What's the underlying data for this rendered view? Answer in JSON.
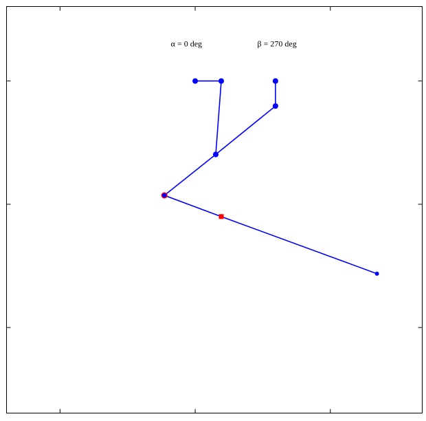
{
  "chart_data": {
    "type": "line",
    "title": "",
    "xlabel": "",
    "ylabel": "",
    "xlim": [
      -1.396,
      1.68
    ],
    "ylim": [
      -1.694,
      1.604
    ],
    "xticks": [
      -1,
      0,
      1
    ],
    "yticks": [
      -1,
      0,
      1
    ],
    "tick_labels_shown": false,
    "grid": false,
    "annotations": [
      {
        "text": "α = 0 deg",
        "x": -0.18,
        "y": 1.28
      },
      {
        "text": "β = 270 deg",
        "x": 0.46,
        "y": 1.28
      }
    ],
    "series": [
      {
        "color": "#0000ff",
        "marker": "circle",
        "points": [
          [
            0,
            1
          ],
          [
            0.193,
            1
          ],
          [
            0.152,
            0.404
          ]
        ]
      },
      {
        "color": "#0000ff",
        "marker": "circle",
        "points": [
          [
            -0.228,
            0.072
          ],
          [
            0.152,
            0.404
          ],
          [
            0.594,
            0.797
          ],
          [
            0.594,
            1
          ]
        ]
      },
      {
        "color": "#0000ff",
        "marker": "none",
        "points": [
          [
            -0.228,
            0.072
          ],
          [
            0.193,
            -0.1
          ],
          [
            1.345,
            -0.563
          ]
        ]
      }
    ],
    "highlight_points": [
      {
        "color": "#ff0000",
        "marker": "circle",
        "x": -0.228,
        "y": 0.072
      },
      {
        "color": "#ff0000",
        "marker": "square",
        "x": 0.193,
        "y": -0.1
      }
    ],
    "end_point": {
      "color": "#0000ff",
      "marker": "small-circle",
      "x": 1.345,
      "y": -0.563
    }
  }
}
